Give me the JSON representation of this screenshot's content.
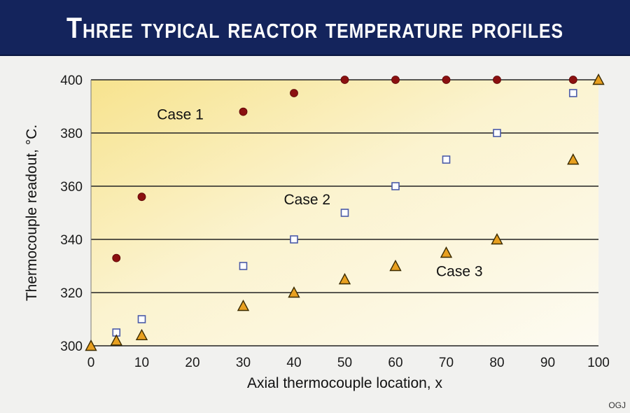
{
  "header": {
    "title": "Three typical reactor temperature profiles"
  },
  "credit": "OGJ",
  "colors": {
    "title_bar": "#14245c",
    "case1": "#8b1010",
    "case2_fill": "#ffffff",
    "case2_stroke": "#4a5aa8",
    "case3_fill": "#e8a020",
    "case3_stroke": "#3a2a00"
  },
  "chart_data": {
    "type": "scatter",
    "title": "Three typical reactor temperature profiles",
    "xlabel": "Axial thermocouple location, x",
    "ylabel": "Thermocouple readout, °C.",
    "xlim": [
      0,
      100
    ],
    "ylim": [
      300,
      400
    ],
    "xticks": [
      0,
      10,
      20,
      30,
      40,
      50,
      60,
      70,
      80,
      90,
      100
    ],
    "yticks": [
      300,
      320,
      340,
      360,
      380,
      400
    ],
    "grid": "horizontal",
    "series": [
      {
        "name": "Case 1",
        "marker": "dot",
        "points": [
          [
            5,
            333
          ],
          [
            10,
            356
          ],
          [
            30,
            388
          ],
          [
            40,
            395
          ],
          [
            50,
            400
          ],
          [
            60,
            400
          ],
          [
            70,
            400
          ],
          [
            80,
            400
          ],
          [
            95,
            400
          ]
        ]
      },
      {
        "name": "Case 2",
        "marker": "square",
        "points": [
          [
            5,
            305
          ],
          [
            10,
            310
          ],
          [
            30,
            330
          ],
          [
            40,
            340
          ],
          [
            50,
            350
          ],
          [
            60,
            360
          ],
          [
            70,
            370
          ],
          [
            80,
            380
          ],
          [
            95,
            395
          ]
        ]
      },
      {
        "name": "Case 3",
        "marker": "triangle",
        "points": [
          [
            0,
            300
          ],
          [
            5,
            302
          ],
          [
            10,
            304
          ],
          [
            30,
            315
          ],
          [
            40,
            320
          ],
          [
            50,
            325
          ],
          [
            60,
            330
          ],
          [
            70,
            335
          ],
          [
            80,
            340
          ],
          [
            95,
            370
          ],
          [
            100,
            400
          ]
        ]
      }
    ],
    "annotations": [
      {
        "text": "Case 1",
        "x": 13,
        "y": 387
      },
      {
        "text": "Case 2",
        "x": 38,
        "y": 355
      },
      {
        "text": "Case 3",
        "x": 68,
        "y": 328
      }
    ]
  }
}
